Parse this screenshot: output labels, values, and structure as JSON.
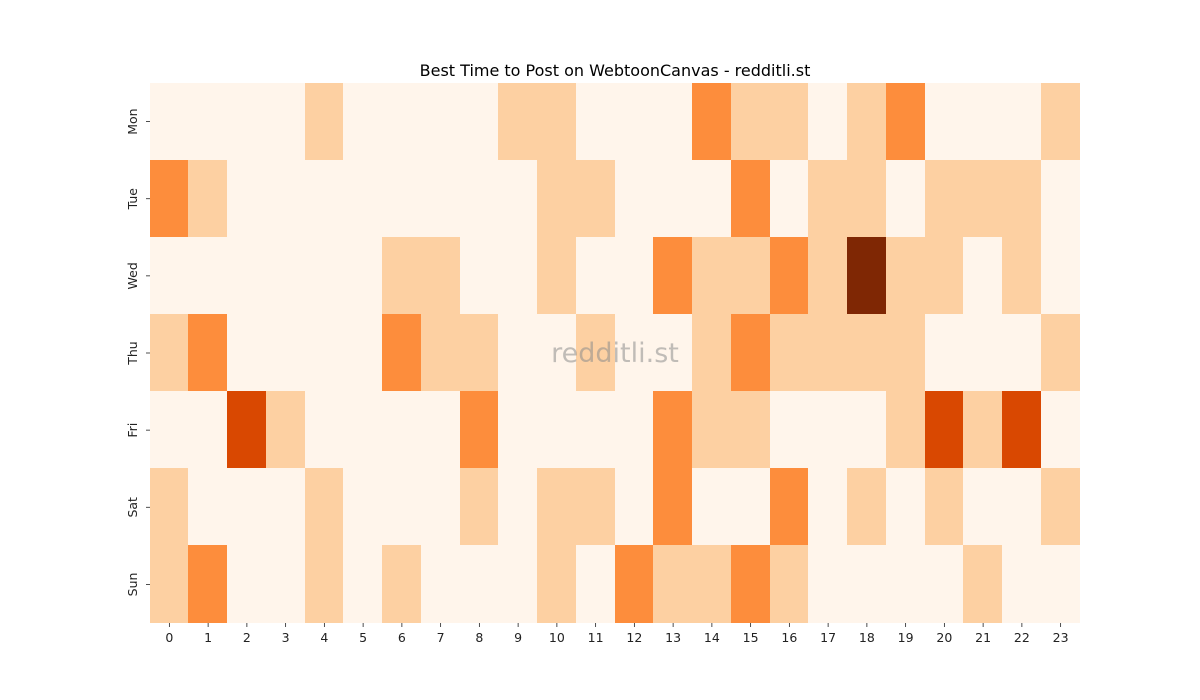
{
  "chart_data": {
    "type": "heatmap",
    "title": "Best Time to Post on WebtoonCanvas - redditli.st",
    "watermark": "redditli.st",
    "xlabel": "",
    "ylabel": "",
    "x_categories": [
      "0",
      "1",
      "2",
      "3",
      "4",
      "5",
      "6",
      "7",
      "8",
      "9",
      "10",
      "11",
      "12",
      "13",
      "14",
      "15",
      "16",
      "17",
      "18",
      "19",
      "20",
      "21",
      "22",
      "23"
    ],
    "y_categories": [
      "Mon",
      "Tue",
      "Wed",
      "Thu",
      "Fri",
      "Sat",
      "Sun"
    ],
    "values": [
      [
        0,
        0,
        0,
        0,
        1,
        0,
        0,
        0,
        0,
        1,
        1,
        0,
        0,
        0,
        2,
        1,
        1,
        0,
        1,
        2,
        0,
        0,
        0,
        1
      ],
      [
        2,
        1,
        0,
        0,
        0,
        0,
        0,
        0,
        0,
        0,
        1,
        1,
        0,
        0,
        0,
        2,
        0,
        1,
        1,
        0,
        1,
        1,
        1,
        0
      ],
      [
        0,
        0,
        0,
        0,
        0,
        0,
        1,
        1,
        0,
        0,
        1,
        0,
        0,
        2,
        1,
        1,
        2,
        1,
        4,
        1,
        1,
        0,
        1,
        0
      ],
      [
        1,
        2,
        0,
        0,
        0,
        0,
        2,
        1,
        1,
        0,
        0,
        1,
        0,
        0,
        1,
        2,
        1,
        1,
        1,
        1,
        0,
        0,
        0,
        1
      ],
      [
        0,
        0,
        3,
        1,
        0,
        0,
        0,
        0,
        2,
        0,
        0,
        0,
        0,
        2,
        1,
        1,
        0,
        0,
        0,
        1,
        3,
        1,
        3,
        0
      ],
      [
        1,
        0,
        0,
        0,
        1,
        0,
        0,
        0,
        1,
        0,
        1,
        1,
        0,
        2,
        0,
        0,
        2,
        0,
        1,
        0,
        1,
        0,
        0,
        1
      ],
      [
        1,
        2,
        0,
        0,
        1,
        0,
        1,
        0,
        0,
        0,
        1,
        0,
        2,
        1,
        1,
        2,
        1,
        0,
        0,
        0,
        0,
        1,
        0,
        0
      ]
    ],
    "color_scale": [
      "#fff5eb",
      "#fdd0a2",
      "#fd8d3c",
      "#d94801",
      "#7f2704"
    ],
    "colorbar": false,
    "grid": false
  }
}
